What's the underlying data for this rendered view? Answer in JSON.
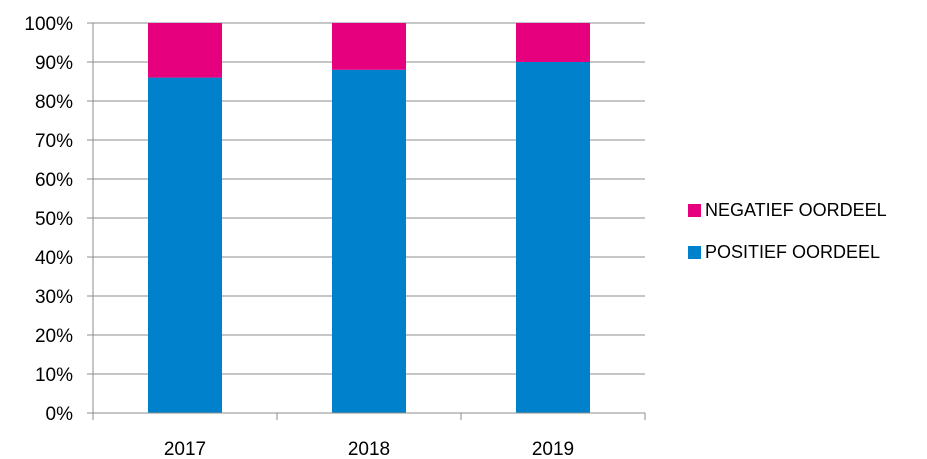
{
  "chart_data": {
    "type": "bar",
    "stacked": true,
    "categories": [
      "2017",
      "2018",
      "2019"
    ],
    "series": [
      {
        "name": "POSITIEF OORDEEL",
        "color": "#0081CC",
        "values": [
          86,
          88,
          90
        ]
      },
      {
        "name": "NEGATIEF OORDEEL",
        "color": "#E6007E",
        "values": [
          14,
          12,
          10
        ]
      }
    ],
    "ylim": [
      0,
      100
    ],
    "yticks": [
      "0%",
      "10%",
      "20%",
      "30%",
      "40%",
      "50%",
      "60%",
      "70%",
      "80%",
      "90%",
      "100%"
    ],
    "grid": true,
    "legend_position": "right",
    "legend": [
      {
        "label": "NEGATIEF OORDEEL",
        "color": "#E6007E"
      },
      {
        "label": "POSITIEF OORDEEL",
        "color": "#0081CC"
      }
    ]
  }
}
